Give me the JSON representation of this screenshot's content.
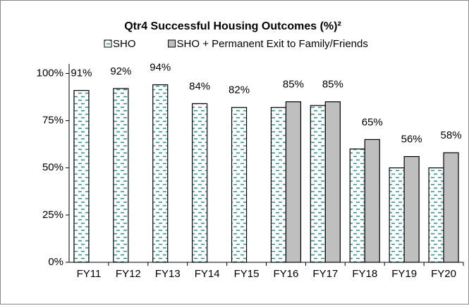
{
  "chart_data": {
    "type": "bar",
    "title": "Qtr4 Successful Housing Outcomes (%)²",
    "categories": [
      "FY11",
      "FY12",
      "FY13",
      "FY14",
      "FY15",
      "FY16",
      "FY17",
      "FY18",
      "FY19",
      "FY20"
    ],
    "series": [
      {
        "name": "SHO",
        "color": "#2e8b8b",
        "pattern": "dashes",
        "values": [
          91,
          92,
          94,
          84,
          82,
          82,
          83,
          60,
          50,
          50
        ],
        "value_labels": [
          "91%",
          "92%",
          "94%",
          "84%",
          "82%",
          null,
          null,
          null,
          null,
          null
        ]
      },
      {
        "name": "SHO + Permanent Exit to Family/Friends",
        "color": "#bfbfbf",
        "values": [
          null,
          null,
          null,
          null,
          null,
          85,
          85,
          65,
          56,
          58
        ],
        "value_labels": [
          null,
          null,
          null,
          null,
          null,
          "85%",
          "85%",
          "65%",
          "56%",
          "58%"
        ]
      }
    ],
    "ylim": [
      0,
      105
    ],
    "yticks": [
      {
        "value": 0,
        "label": "0%"
      },
      {
        "value": 25,
        "label": "25%"
      },
      {
        "value": 50,
        "label": "50%"
      },
      {
        "value": 75,
        "label": "75%"
      },
      {
        "value": 100,
        "label": "100%"
      }
    ],
    "grid": false,
    "legend": "top"
  }
}
